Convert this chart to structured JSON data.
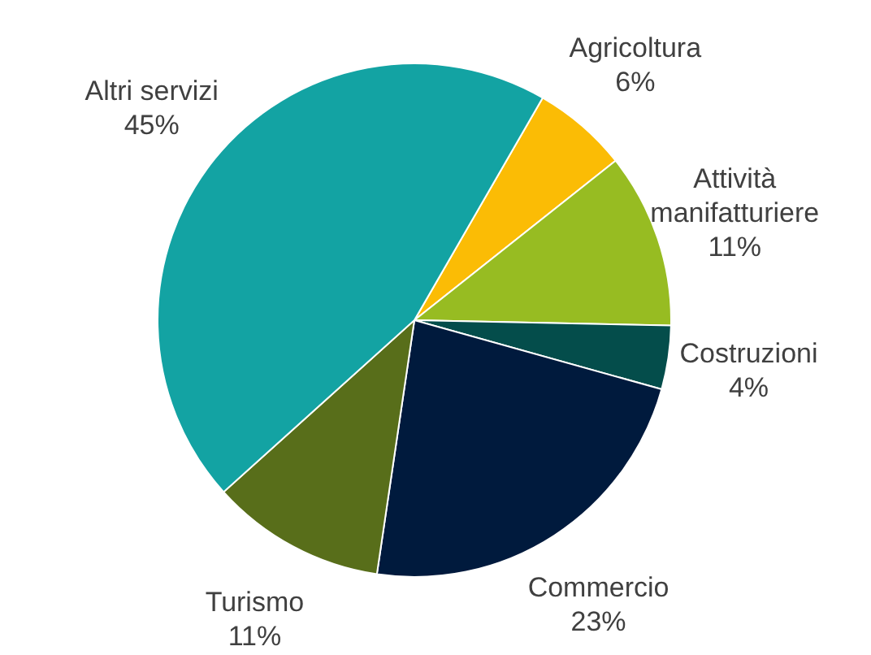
{
  "chart_data": {
    "type": "pie",
    "categories": [
      "Agricoltura",
      "Attività manifatturiere",
      "Costruzioni",
      "Commercio",
      "Turismo",
      "Altri servizi"
    ],
    "values": [
      6,
      11,
      4,
      23,
      11,
      45
    ],
    "value_labels": [
      "6%",
      "11%",
      "4%",
      "23%",
      "11%",
      "45%"
    ],
    "colors": [
      "#fbbc05",
      "#97bc22",
      "#044d4b",
      "#001a3d",
      "#586e1a",
      "#13a3a3"
    ]
  }
}
